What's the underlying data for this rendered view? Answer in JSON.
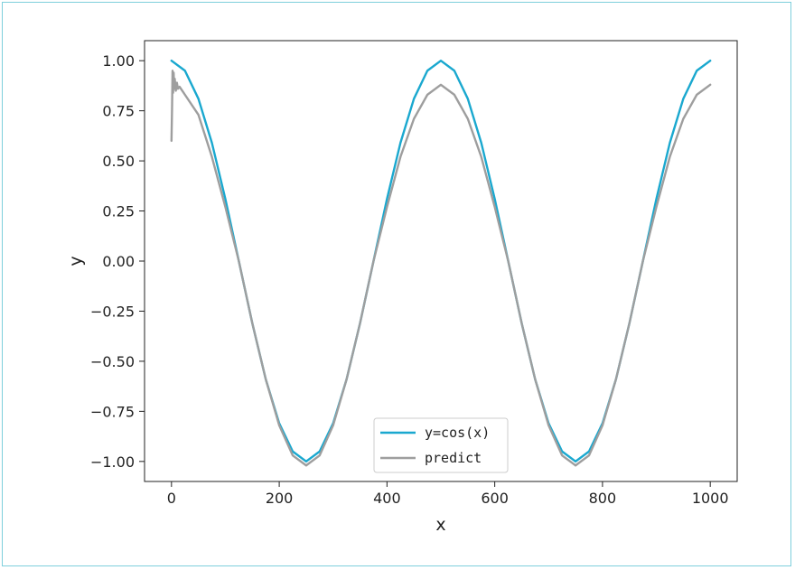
{
  "chart_data": {
    "type": "line",
    "title": "",
    "xlabel": "x",
    "ylabel": "y",
    "xlim": [
      -50,
      1050
    ],
    "ylim": [
      -1.1,
      1.1
    ],
    "xticks": [
      0,
      200,
      400,
      600,
      800,
      1000
    ],
    "yticks": [
      1.0,
      0.75,
      0.5,
      0.25,
      0.0,
      -0.25,
      -0.5,
      -0.75,
      -1.0
    ],
    "xtick_labels": [
      "0",
      "200",
      "400",
      "600",
      "800",
      "1000"
    ],
    "ytick_labels": [
      "1.00",
      "0.75",
      "0.50",
      "0.25",
      "0.00",
      "−0.25",
      "−0.50",
      "−0.75",
      "−1.00"
    ],
    "grid": false,
    "legend_position": "bottom-center",
    "series": [
      {
        "name": "y=cos(x)",
        "color": "#1aa8cf",
        "x": [
          0,
          25,
          50,
          75,
          100,
          125,
          150,
          175,
          200,
          225,
          250,
          275,
          300,
          325,
          350,
          375,
          400,
          425,
          450,
          475,
          500,
          525,
          550,
          575,
          600,
          625,
          650,
          675,
          700,
          725,
          750,
          775,
          800,
          825,
          850,
          875,
          900,
          925,
          950,
          975,
          1000
        ],
        "y": [
          1.0,
          0.95,
          0.81,
          0.59,
          0.31,
          0.0,
          -0.31,
          -0.59,
          -0.81,
          -0.95,
          -1.0,
          -0.95,
          -0.81,
          -0.59,
          -0.31,
          0.0,
          0.31,
          0.59,
          0.81,
          0.95,
          1.0,
          0.95,
          0.81,
          0.59,
          0.31,
          0.0,
          -0.31,
          -0.59,
          -0.81,
          -0.95,
          -1.0,
          -0.95,
          -0.81,
          -0.59,
          -0.31,
          0.0,
          0.31,
          0.59,
          0.81,
          0.95,
          1.0
        ]
      },
      {
        "name": "predict",
        "color": "#9e9e9e",
        "x": [
          0,
          1,
          2,
          3,
          4,
          5,
          6,
          8,
          10,
          12,
          15,
          20,
          25,
          50,
          75,
          100,
          125,
          150,
          175,
          200,
          225,
          250,
          275,
          300,
          325,
          350,
          375,
          400,
          425,
          450,
          475,
          500,
          525,
          550,
          575,
          600,
          625,
          650,
          675,
          700,
          725,
          750,
          775,
          800,
          825,
          850,
          875,
          900,
          925,
          950,
          975,
          1000
        ],
        "y": [
          0.6,
          0.75,
          0.95,
          0.84,
          0.94,
          0.86,
          0.91,
          0.85,
          0.89,
          0.86,
          0.87,
          0.85,
          0.83,
          0.73,
          0.52,
          0.27,
          0.0,
          -0.31,
          -0.59,
          -0.82,
          -0.97,
          -1.02,
          -0.97,
          -0.82,
          -0.59,
          -0.31,
          0.0,
          0.27,
          0.52,
          0.71,
          0.83,
          0.88,
          0.83,
          0.71,
          0.52,
          0.27,
          0.0,
          -0.31,
          -0.59,
          -0.82,
          -0.97,
          -1.02,
          -0.97,
          -0.82,
          -0.59,
          -0.31,
          0.0,
          0.27,
          0.52,
          0.71,
          0.83,
          0.88
        ]
      }
    ]
  }
}
